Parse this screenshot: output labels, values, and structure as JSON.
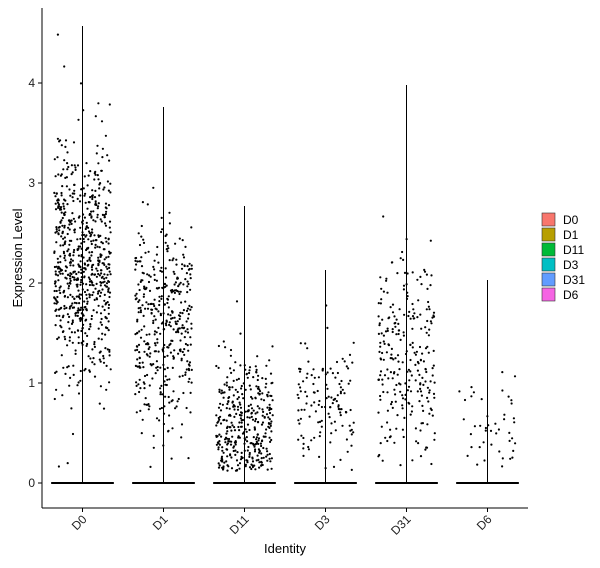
{
  "chart_data": {
    "type": "scatter",
    "subtype": "violin-jitter",
    "title": "",
    "xlabel": "Identity",
    "ylabel": "Expression Level",
    "ylim": [
      -0.25,
      4.6
    ],
    "yticks": [
      0,
      1,
      2,
      3,
      4
    ],
    "grid": false,
    "legend_position": "right",
    "categories": [
      "D0",
      "D1",
      "D11",
      "D3",
      "D31",
      "D6"
    ],
    "series": [
      {
        "name": "D0",
        "color": "#F8766D",
        "max": 4.57,
        "jitter_points": 700,
        "center": 2.2,
        "spread": 1.0
      },
      {
        "name": "D1",
        "color": "#B79F00",
        "max": 3.76,
        "jitter_points": 420,
        "center": 1.5,
        "spread": 0.9
      },
      {
        "name": "D11",
        "color": "#00BA38",
        "max": 2.77,
        "jitter_points": 380,
        "center": 0.55,
        "spread": 0.6
      },
      {
        "name": "D3",
        "color": "#00BFC4",
        "max": 2.13,
        "jitter_points": 130,
        "center": 0.8,
        "spread": 0.5
      },
      {
        "name": "D31",
        "color": "#619CFF",
        "max": 3.98,
        "jitter_points": 260,
        "center": 1.2,
        "spread": 0.9
      },
      {
        "name": "D6",
        "color": "#F564E3",
        "max": 2.03,
        "jitter_points": 45,
        "center": 0.6,
        "spread": 0.5
      }
    ]
  }
}
